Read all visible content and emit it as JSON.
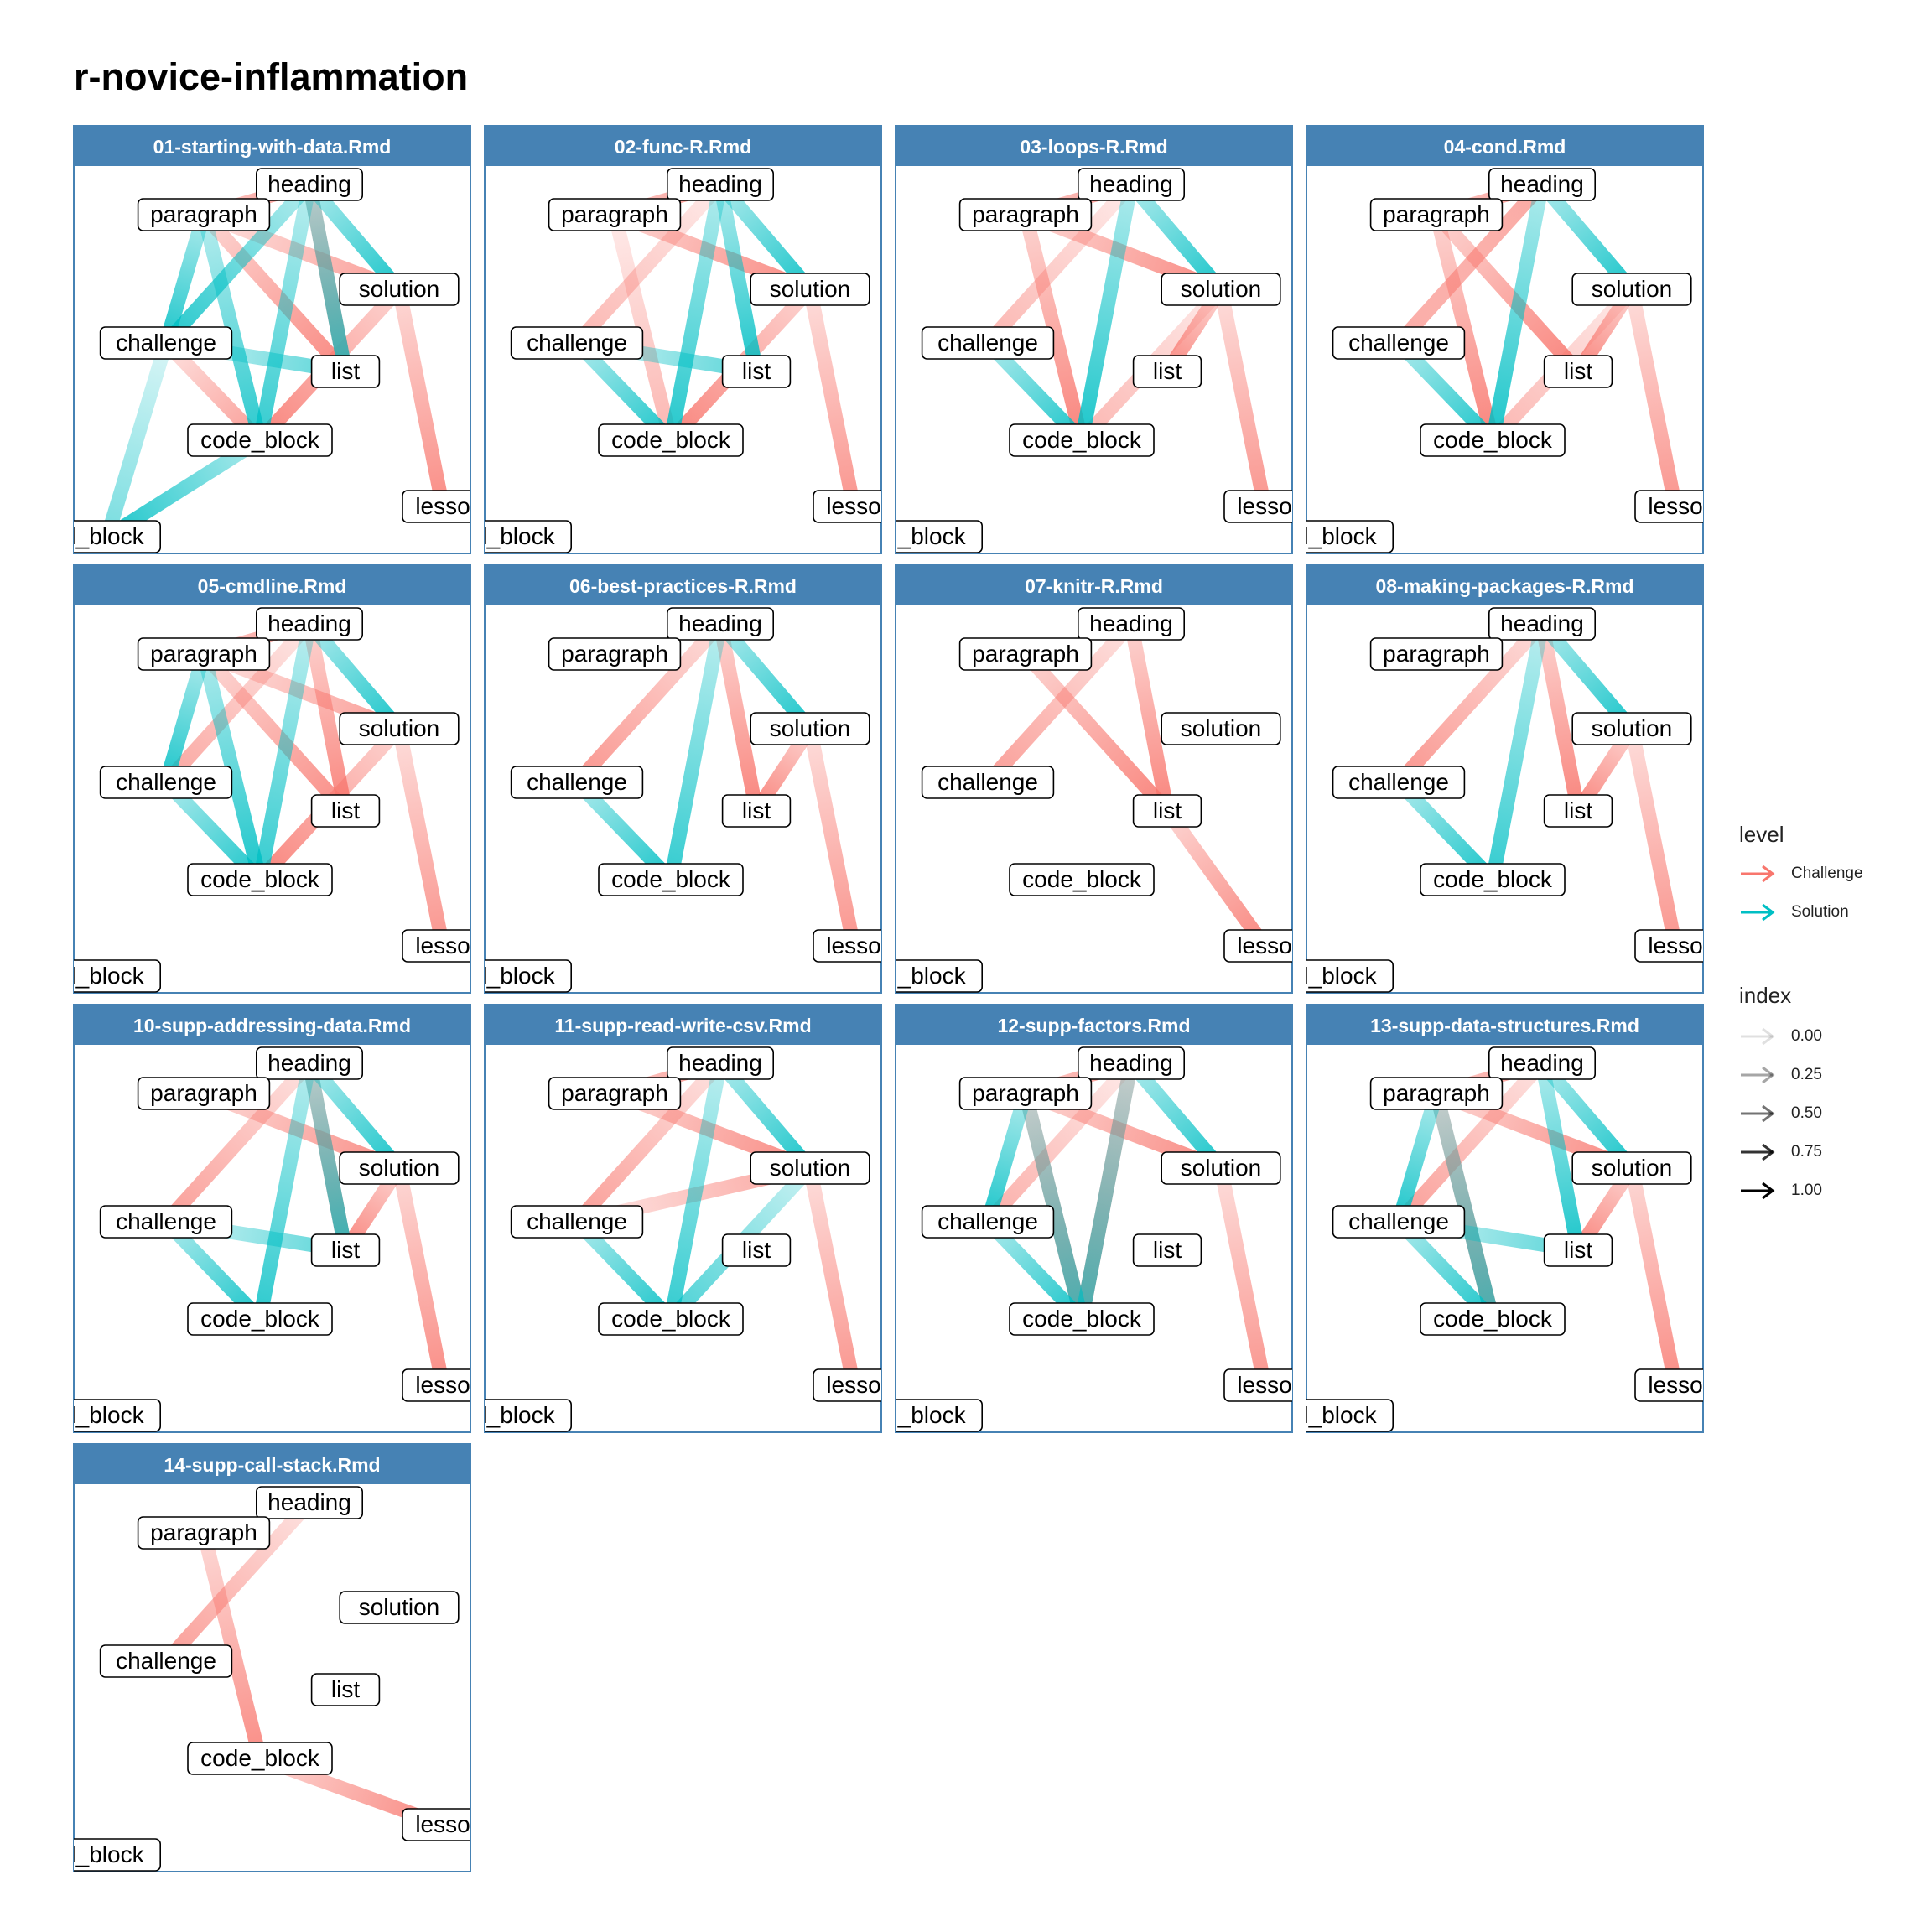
{
  "title": "r-novice-inflammation",
  "colors": {
    "challenge": "#F8766D",
    "solution": "#00BFC4",
    "strip": "#4682B4",
    "strip_text": "#ffffff",
    "panel_border": "#4682B4"
  },
  "chart_data": {
    "type": "network-facets",
    "node_labels": {
      "heading": "heading",
      "paragraph": "paragraph",
      "solution": "solution",
      "challenge": "challenge",
      "list": "list",
      "code_block": "code_block",
      "lesson": "lesso",
      "block": "l_block"
    },
    "panels": [
      {
        "title": "01-starting-with-data.Rmd",
        "edges": [
          [
            "paragraph",
            "heading",
            "Challenge",
            0.8
          ],
          [
            "heading",
            "list",
            "Challenge",
            0.9
          ],
          [
            "paragraph",
            "solution",
            "Challenge",
            0.6
          ],
          [
            "paragraph",
            "list",
            "Challenge",
            0.85
          ],
          [
            "solution",
            "code_block",
            "Challenge",
            0.9
          ],
          [
            "solution",
            "lesson",
            "Challenge",
            0.8
          ],
          [
            "challenge",
            "code_block",
            "Challenge",
            0.6
          ],
          [
            "heading",
            "solution",
            "Solution",
            0.9
          ],
          [
            "heading",
            "challenge",
            "Solution",
            0.85
          ],
          [
            "heading",
            "code_block",
            "Solution",
            0.75
          ],
          [
            "paragraph",
            "challenge",
            "Solution",
            0.9
          ],
          [
            "paragraph",
            "code_block",
            "Solution",
            0.8
          ],
          [
            "challenge",
            "list",
            "Solution",
            0.5
          ],
          [
            "heading",
            "list",
            "Solution",
            0.7
          ],
          [
            "challenge",
            "block",
            "Solution",
            0.3
          ],
          [
            "code_block",
            "block",
            "Solution",
            0.9
          ]
        ]
      },
      {
        "title": "02-func-R.Rmd",
        "edges": [
          [
            "paragraph",
            "heading",
            "Challenge",
            0.8
          ],
          [
            "paragraph",
            "solution",
            "Challenge",
            0.85
          ],
          [
            "paragraph",
            "code_block",
            "Challenge",
            0.3
          ],
          [
            "heading",
            "challenge",
            "Challenge",
            0.3
          ],
          [
            "solution",
            "code_block",
            "Challenge",
            0.9
          ],
          [
            "solution",
            "lesson",
            "Challenge",
            0.7
          ],
          [
            "heading",
            "code_block",
            "Solution",
            0.85
          ],
          [
            "heading",
            "solution",
            "Solution",
            0.9
          ],
          [
            "heading",
            "list",
            "Solution",
            0.9
          ],
          [
            "challenge",
            "list",
            "Solution",
            0.5
          ],
          [
            "challenge",
            "code_block",
            "Solution",
            0.9
          ]
        ]
      },
      {
        "title": "03-loops-R.Rmd",
        "edges": [
          [
            "paragraph",
            "heading",
            "Challenge",
            0.8
          ],
          [
            "paragraph",
            "solution",
            "Challenge",
            0.85
          ],
          [
            "paragraph",
            "code_block",
            "Challenge",
            0.9
          ],
          [
            "heading",
            "challenge",
            "Challenge",
            0.3
          ],
          [
            "solution",
            "code_block",
            "Challenge",
            0.3
          ],
          [
            "solution",
            "list",
            "Challenge",
            0.85
          ],
          [
            "solution",
            "lesson",
            "Challenge",
            0.7
          ],
          [
            "heading",
            "code_block",
            "Solution",
            0.9
          ],
          [
            "heading",
            "solution",
            "Solution",
            0.9
          ],
          [
            "challenge",
            "code_block",
            "Solution",
            0.9
          ]
        ]
      },
      {
        "title": "04-cond.Rmd",
        "edges": [
          [
            "paragraph",
            "heading",
            "Challenge",
            0.8
          ],
          [
            "paragraph",
            "list",
            "Challenge",
            0.9
          ],
          [
            "paragraph",
            "code_block",
            "Challenge",
            0.9
          ],
          [
            "heading",
            "challenge",
            "Challenge",
            0.3
          ],
          [
            "solution",
            "list",
            "Challenge",
            0.9
          ],
          [
            "solution",
            "code_block",
            "Challenge",
            0.3
          ],
          [
            "solution",
            "lesson",
            "Challenge",
            0.7
          ],
          [
            "challenge",
            "heading",
            "Challenge",
            0.35
          ],
          [
            "heading",
            "code_block",
            "Solution",
            0.9
          ],
          [
            "heading",
            "solution",
            "Solution",
            0.9
          ],
          [
            "challenge",
            "code_block",
            "Solution",
            0.9
          ]
        ]
      },
      {
        "title": "05-cmdline.Rmd",
        "edges": [
          [
            "paragraph",
            "heading",
            "Challenge",
            0.8
          ],
          [
            "paragraph",
            "solution",
            "Challenge",
            0.6
          ],
          [
            "paragraph",
            "list",
            "Challenge",
            0.8
          ],
          [
            "heading",
            "list",
            "Challenge",
            0.9
          ],
          [
            "solution",
            "code_block",
            "Challenge",
            0.9
          ],
          [
            "solution",
            "lesson",
            "Challenge",
            0.7
          ],
          [
            "heading",
            "challenge",
            "Challenge",
            0.5
          ],
          [
            "heading",
            "solution",
            "Solution",
            0.9
          ],
          [
            "heading",
            "code_block",
            "Solution",
            0.75
          ],
          [
            "paragraph",
            "challenge",
            "Solution",
            0.9
          ],
          [
            "paragraph",
            "code_block",
            "Solution",
            0.9
          ],
          [
            "challenge",
            "code_block",
            "Solution",
            0.9
          ]
        ]
      },
      {
        "title": "06-best-practices-R.Rmd",
        "edges": [
          [
            "heading",
            "challenge",
            "Challenge",
            0.7
          ],
          [
            "heading",
            "list",
            "Challenge",
            0.9
          ],
          [
            "solution",
            "list",
            "Challenge",
            0.9
          ],
          [
            "solution",
            "lesson",
            "Challenge",
            0.7
          ],
          [
            "heading",
            "solution",
            "Solution",
            0.9
          ],
          [
            "heading",
            "code_block",
            "Solution",
            0.75
          ],
          [
            "challenge",
            "code_block",
            "Solution",
            0.9
          ]
        ]
      },
      {
        "title": "07-knitr-R.Rmd",
        "edges": [
          [
            "heading",
            "challenge",
            "Challenge",
            0.6
          ],
          [
            "paragraph",
            "list",
            "Challenge",
            0.9
          ],
          [
            "heading",
            "list",
            "Challenge",
            0.9
          ],
          [
            "list",
            "lesson",
            "Challenge",
            0.85
          ]
        ]
      },
      {
        "title": "08-making-packages-R.Rmd",
        "edges": [
          [
            "heading",
            "challenge",
            "Challenge",
            0.7
          ],
          [
            "heading",
            "list",
            "Challenge",
            0.9
          ],
          [
            "solution",
            "list",
            "Challenge",
            0.9
          ],
          [
            "solution",
            "lesson",
            "Challenge",
            0.7
          ],
          [
            "heading",
            "solution",
            "Solution",
            0.9
          ],
          [
            "heading",
            "code_block",
            "Solution",
            0.75
          ],
          [
            "challenge",
            "code_block",
            "Solution",
            0.9
          ]
        ]
      },
      {
        "title": "10-supp-addressing-data.Rmd",
        "edges": [
          [
            "heading",
            "challenge",
            "Challenge",
            0.6
          ],
          [
            "paragraph",
            "solution",
            "Challenge",
            0.8
          ],
          [
            "heading",
            "list",
            "Challenge",
            0.9
          ],
          [
            "solution",
            "list",
            "Challenge",
            0.9
          ],
          [
            "solution",
            "lesson",
            "Challenge",
            0.8
          ],
          [
            "heading",
            "solution",
            "Solution",
            0.9
          ],
          [
            "heading",
            "code_block",
            "Solution",
            0.8
          ],
          [
            "challenge",
            "code_block",
            "Solution",
            0.9
          ],
          [
            "challenge",
            "list",
            "Solution",
            0.5
          ],
          [
            "heading",
            "list",
            "Solution",
            0.7
          ]
        ]
      },
      {
        "title": "11-supp-read-write-csv.Rmd",
        "edges": [
          [
            "paragraph",
            "heading",
            "Challenge",
            0.8
          ],
          [
            "paragraph",
            "solution",
            "Challenge",
            0.85
          ],
          [
            "heading",
            "challenge",
            "Challenge",
            0.6
          ],
          [
            "challenge",
            "solution",
            "Challenge",
            0.5
          ],
          [
            "solution",
            "lesson",
            "Challenge",
            0.7
          ],
          [
            "heading",
            "solution",
            "Solution",
            0.9
          ],
          [
            "heading",
            "code_block",
            "Solution",
            0.75
          ],
          [
            "challenge",
            "code_block",
            "Solution",
            0.9
          ],
          [
            "solution",
            "code_block",
            "Solution",
            0.6
          ]
        ]
      },
      {
        "title": "12-supp-factors.Rmd",
        "edges": [
          [
            "paragraph",
            "heading",
            "Challenge",
            0.8
          ],
          [
            "paragraph",
            "solution",
            "Challenge",
            0.85
          ],
          [
            "paragraph",
            "code_block",
            "Challenge",
            0.9
          ],
          [
            "heading",
            "code_block",
            "Challenge",
            0.9
          ],
          [
            "heading",
            "challenge",
            "Challenge",
            0.4
          ],
          [
            "solution",
            "lesson",
            "Challenge",
            0.7
          ],
          [
            "heading",
            "solution",
            "Solution",
            0.9
          ],
          [
            "paragraph",
            "challenge",
            "Solution",
            0.9
          ],
          [
            "challenge",
            "code_block",
            "Solution",
            0.9
          ],
          [
            "paragraph",
            "code_block",
            "Solution",
            0.6
          ],
          [
            "heading",
            "code_block",
            "Solution",
            0.6
          ]
        ]
      },
      {
        "title": "13-supp-data-structures.Rmd",
        "edges": [
          [
            "paragraph",
            "heading",
            "Challenge",
            0.8
          ],
          [
            "paragraph",
            "solution",
            "Challenge",
            0.85
          ],
          [
            "heading",
            "challenge",
            "Challenge",
            0.6
          ],
          [
            "solution",
            "list",
            "Challenge",
            0.9
          ],
          [
            "solution",
            "lesson",
            "Challenge",
            0.8
          ],
          [
            "paragraph",
            "code_block",
            "Challenge",
            0.9
          ],
          [
            "heading",
            "solution",
            "Solution",
            0.9
          ],
          [
            "heading",
            "list",
            "Solution",
            0.9
          ],
          [
            "paragraph",
            "challenge",
            "Solution",
            0.9
          ],
          [
            "challenge",
            "code_block",
            "Solution",
            0.9
          ],
          [
            "challenge",
            "list",
            "Solution",
            0.5
          ],
          [
            "paragraph",
            "code_block",
            "Solution",
            0.6
          ]
        ]
      },
      {
        "title": "14-supp-call-stack.Rmd",
        "edges": [
          [
            "heading",
            "challenge",
            "Challenge",
            0.6
          ],
          [
            "paragraph",
            "code_block",
            "Challenge",
            0.8
          ],
          [
            "code_block",
            "lesson",
            "Challenge",
            0.85
          ]
        ]
      }
    ],
    "legend": {
      "level_title": "level",
      "level_items": [
        "Challenge",
        "Solution"
      ],
      "index_title": "index",
      "index_items": [
        "0.00",
        "0.25",
        "0.50",
        "0.75",
        "1.00"
      ]
    }
  }
}
